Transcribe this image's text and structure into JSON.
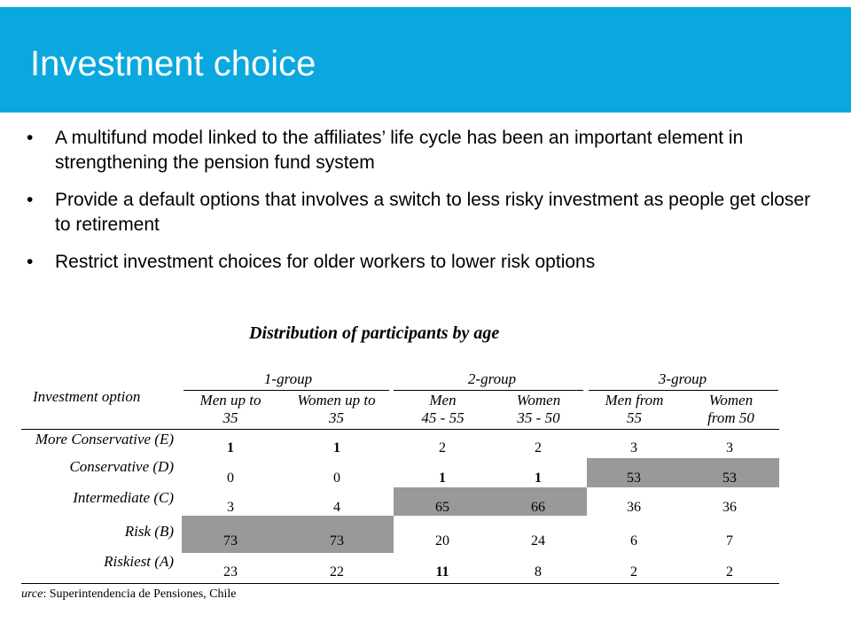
{
  "slide": {
    "title": "Investment choice",
    "bullets": [
      "A multifund model linked to the affiliates’ life cycle has been an important element in strengthening the pension fund system",
      "Provide a default options that involves a switch to less risky investment as people get closer to retirement",
      "Restrict investment choices for older workers to lower risk options"
    ]
  },
  "table": {
    "title": "Distribution of participants by age",
    "row_header": "Investment option",
    "groups": [
      "1-group",
      "2-group",
      "3-group"
    ],
    "columns": [
      {
        "line1": "Men up to",
        "line2": "35"
      },
      {
        "line1": "Women up to",
        "line2": "35"
      },
      {
        "line1": "Men",
        "line2": "45 - 55"
      },
      {
        "line1": "Women",
        "line2": "35 - 50"
      },
      {
        "line1": "Men from",
        "line2": "55"
      },
      {
        "line1": "Women",
        "line2": "from 50"
      }
    ],
    "rows": [
      {
        "label": "More Conservative (E)",
        "values": [
          "1",
          "1",
          "2",
          "2",
          "3",
          "3"
        ]
      },
      {
        "label": "Conservative (D)",
        "values": [
          "0",
          "0",
          "1",
          "1",
          "53",
          "53"
        ]
      },
      {
        "label": "Intermediate (C)",
        "values": [
          "3",
          "4",
          "65",
          "66",
          "36",
          "36"
        ]
      },
      {
        "label": "Risk (B)",
        "values": [
          "73",
          "73",
          "20",
          "24",
          "6",
          "7"
        ]
      },
      {
        "label": "Riskiest (A)",
        "values": [
          "23",
          "22",
          "11",
          "8",
          "2",
          "2"
        ]
      }
    ],
    "source_label": "urce",
    "source_text": ": Superintendencia de Pensiones, Chile"
  },
  "colors": {
    "header": "#0aa8de",
    "shade": "#999999"
  }
}
